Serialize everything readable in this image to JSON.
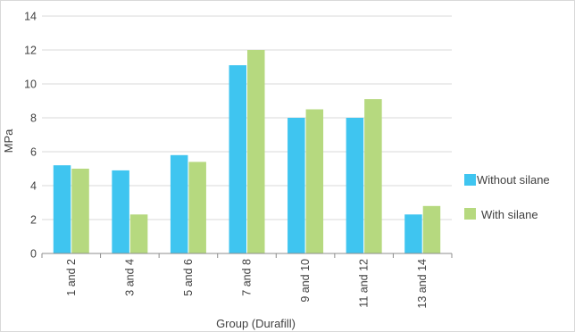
{
  "chart_data": {
    "type": "bar",
    "categories": [
      "1 and 2",
      "3 and 4",
      "5 and 6",
      "7 and 8",
      "9 and 10",
      "11 and 12",
      "13 and 14"
    ],
    "series": [
      {
        "name": "Without silane",
        "color": "#3fc5f0",
        "values": [
          5.2,
          4.9,
          5.8,
          11.1,
          8.0,
          8.0,
          2.3
        ]
      },
      {
        "name": "With silane",
        "color": "#b6d97f",
        "values": [
          5.0,
          2.3,
          5.4,
          12.0,
          8.5,
          9.1,
          2.8
        ]
      }
    ],
    "xlabel": "Group (Durafill)",
    "ylabel": "MPa",
    "ylim": [
      0,
      14
    ],
    "yticks": [
      "0",
      "2",
      "4",
      "6",
      "8",
      "10",
      "12",
      "14"
    ],
    "grid": true,
    "legend_position": "right"
  }
}
